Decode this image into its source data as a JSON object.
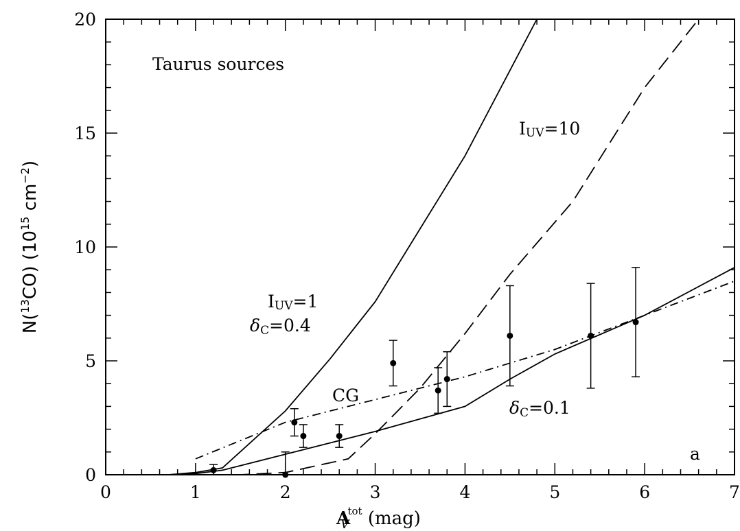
{
  "chart_data": {
    "type": "scatter",
    "x_range": [
      0,
      7
    ],
    "y_range": [
      0,
      20
    ],
    "x_ticks": [
      "0",
      "1",
      "2",
      "3",
      "4",
      "5",
      "6",
      "7"
    ],
    "y_ticks": [
      "0",
      "5",
      "10",
      "15",
      "20"
    ],
    "xlabel": {
      "main": "A",
      "sub": "V",
      "sup": "tot",
      "unit": " (mag)"
    },
    "ylabel": {
      "pre": "N(",
      "sup": "13",
      "mid": "CO)  (10",
      "sup2": "15",
      "post": " cm",
      "sup3": "−2",
      "end": ")"
    },
    "panel_label": "a",
    "sample_label": "Taurus sources",
    "annotations": {
      "iuv10": {
        "main": "I",
        "sub": "UV",
        "rest": "=10"
      },
      "iuv1": {
        "main": "I",
        "sub": "UV",
        "rest": "=1"
      },
      "dc04": {
        "main": "δ",
        "sub": "C",
        "rest": "=0.4"
      },
      "cg": "CG",
      "dc01": {
        "main": "δ",
        "sub": "C",
        "rest": "=0.1"
      }
    },
    "points": [
      {
        "x": 1.2,
        "y": 0.2,
        "ylo": 0.0,
        "yhi": 0.45
      },
      {
        "x": 2.0,
        "y": 0.0,
        "ylo": 0.0,
        "yhi": 1.0
      },
      {
        "x": 2.1,
        "y": 2.3,
        "ylo": 1.7,
        "yhi": 2.9
      },
      {
        "x": 2.2,
        "y": 1.7,
        "ylo": 1.2,
        "yhi": 2.2
      },
      {
        "x": 2.6,
        "y": 1.7,
        "ylo": 1.2,
        "yhi": 2.2
      },
      {
        "x": 3.2,
        "y": 4.9,
        "ylo": 3.9,
        "yhi": 5.9
      },
      {
        "x": 3.7,
        "y": 3.7,
        "ylo": 2.7,
        "yhi": 4.7
      },
      {
        "x": 3.8,
        "y": 4.2,
        "ylo": 3.0,
        "yhi": 5.4
      },
      {
        "x": 4.5,
        "y": 6.1,
        "ylo": 3.9,
        "yhi": 8.3
      },
      {
        "x": 5.4,
        "y": 6.1,
        "ylo": 3.8,
        "yhi": 8.4
      },
      {
        "x": 5.9,
        "y": 6.7,
        "ylo": 4.3,
        "yhi": 9.1
      }
    ],
    "series": [
      {
        "style": "solid",
        "x": [
          0.7,
          1.0,
          1.3,
          2.0,
          2.5,
          3.0,
          3.5,
          4.0,
          4.8
        ],
        "y": [
          0.0,
          0.1,
          0.3,
          2.8,
          5.1,
          7.6,
          10.8,
          14.0,
          20.0
        ]
      },
      {
        "style": "dashed",
        "x": [
          0.7,
          1.5,
          2.0,
          2.7,
          3.0,
          3.5,
          4.0,
          4.5,
          5.2,
          5.6,
          6.0,
          6.6
        ],
        "y": [
          0.0,
          0.0,
          0.1,
          0.7,
          1.8,
          3.8,
          6.2,
          8.8,
          12.0,
          14.5,
          17.0,
          20.0
        ]
      },
      {
        "style": "solid",
        "x": [
          0.7,
          1.0,
          1.3,
          2.0,
          2.7,
          3.0,
          4.0,
          4.5,
          5.0,
          6.0,
          7.0
        ],
        "y": [
          0.0,
          0.05,
          0.2,
          0.9,
          1.6,
          1.9,
          3.0,
          4.2,
          5.3,
          7.0,
          9.1
        ]
      },
      {
        "style": "dashdot",
        "x": [
          1.0,
          2.0,
          3.0,
          4.0,
          5.0,
          6.0,
          7.0
        ],
        "y": [
          0.7,
          2.3,
          3.3,
          4.3,
          5.5,
          7.0,
          8.5
        ]
      }
    ]
  }
}
